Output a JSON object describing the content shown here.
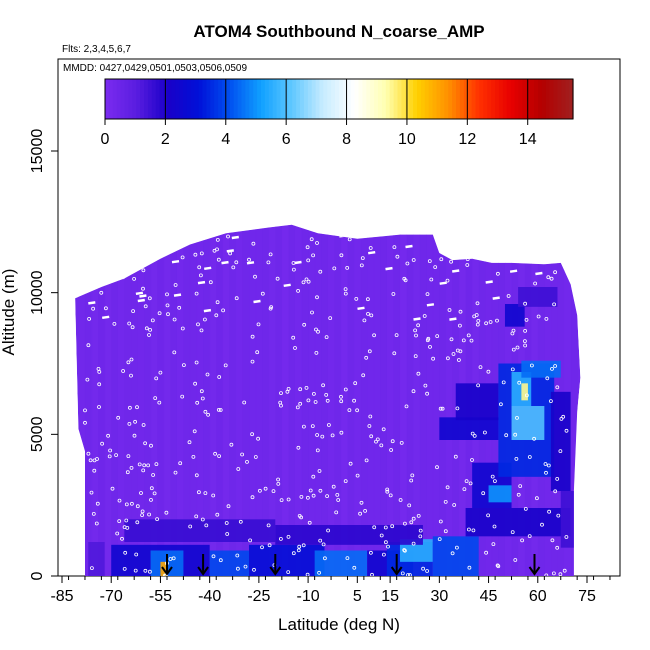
{
  "chart_data": {
    "type": "heatmap",
    "title": "ATOM4 Southbound N_coarse_AMP",
    "flights_label": "Flts: 2,3,4,5,6,7",
    "dates_label": "MMDD: 0427,0429,0501,0503,0506,0509",
    "xlabel": "Latitude (deg N)",
    "ylabel": "Altitude (m)",
    "xlim": [
      -88,
      90
    ],
    "ylim": [
      0,
      18000
    ],
    "x_ticks": [
      -85,
      -70,
      -55,
      -40,
      -25,
      -10,
      5,
      15,
      30,
      45,
      60,
      75
    ],
    "x_tick_labels": [
      "-85",
      "-70",
      "-55",
      "-40",
      "-25",
      "-10",
      "5",
      "15",
      "30",
      "45",
      "60",
      "75"
    ],
    "y_ticks": [
      0,
      5000,
      10000,
      15000
    ],
    "y_tick_labels": [
      "0",
      "5000",
      "10000",
      "15000"
    ],
    "colorbar": {
      "min": 0,
      "max": 15.5,
      "ticks": [
        0,
        2,
        4,
        6,
        8,
        10,
        12,
        14
      ],
      "tick_labels": [
        "0",
        "2",
        "4",
        "6",
        "8",
        "10",
        "12",
        "14"
      ],
      "colors": [
        "#7b2cf0",
        "#5a1de0",
        "#1a00c8",
        "#0010d8",
        "#0050f0",
        "#10a0ff",
        "#60c8ff",
        "#c8ecff",
        "#ffffff",
        "#ffffb0",
        "#ffd000",
        "#ff9000",
        "#ff3000",
        "#e80000",
        "#b40000",
        "#a02020"
      ]
    },
    "background_value": 0.3,
    "domain_outline": [
      [
        -78,
        0
      ],
      [
        -78,
        4400
      ],
      [
        -80,
        5200
      ],
      [
        -81,
        9800
      ],
      [
        -73,
        10200
      ],
      [
        -66,
        10500
      ],
      [
        -55,
        11200
      ],
      [
        -46,
        11700
      ],
      [
        -35,
        12100
      ],
      [
        -22,
        12300
      ],
      [
        -15,
        12400
      ],
      [
        -7,
        12100
      ],
      [
        5,
        11900
      ],
      [
        18,
        12050
      ],
      [
        28,
        12050
      ],
      [
        30,
        11400
      ],
      [
        34,
        11150
      ],
      [
        40,
        11200
      ],
      [
        46,
        11050
      ],
      [
        52,
        11050
      ],
      [
        62,
        11000
      ],
      [
        67,
        11050
      ],
      [
        70,
        10300
      ],
      [
        72,
        9200
      ],
      [
        73,
        7000
      ],
      [
        72,
        5800
      ],
      [
        71,
        3000
      ],
      [
        71,
        0
      ]
    ],
    "hotspots": [
      {
        "x": [
          -77,
          -72
        ],
        "y": [
          0,
          1200
        ],
        "value": 1.2
      },
      {
        "x": [
          -70,
          -40
        ],
        "y": [
          0,
          1100
        ],
        "value": 2.5
      },
      {
        "x": [
          -58,
          -48
        ],
        "y": [
          0,
          900
        ],
        "value": 4.5
      },
      {
        "x": [
          -55,
          -53
        ],
        "y": [
          0,
          500
        ],
        "value": 11
      },
      {
        "x": [
          -40,
          -28
        ],
        "y": [
          0,
          900
        ],
        "value": 4
      },
      {
        "x": [
          -28,
          -5
        ],
        "y": [
          0,
          1100
        ],
        "value": 3
      },
      {
        "x": [
          -8,
          8
        ],
        "y": [
          0,
          900
        ],
        "value": 4.5
      },
      {
        "x": [
          8,
          22
        ],
        "y": [
          0,
          900
        ],
        "value": 2.5
      },
      {
        "x": [
          14,
          28
        ],
        "y": [
          0,
          1200
        ],
        "value": 3.5
      },
      {
        "x": [
          18,
          28
        ],
        "y": [
          500,
          1300
        ],
        "value": 5.5
      },
      {
        "x": [
          28,
          42
        ],
        "y": [
          0,
          1400
        ],
        "value": 4
      },
      {
        "x": [
          -66,
          -20
        ],
        "y": [
          1200,
          2000
        ],
        "value": 1.6
      },
      {
        "x": [
          -20,
          25
        ],
        "y": [
          1100,
          1800
        ],
        "value": 1.8
      },
      {
        "x": [
          38,
          70
        ],
        "y": [
          1400,
          2400
        ],
        "value": 2.2
      },
      {
        "x": [
          40,
          52
        ],
        "y": [
          2400,
          4000
        ],
        "value": 2.5
      },
      {
        "x": [
          45,
          52
        ],
        "y": [
          2600,
          3200
        ],
        "value": 5
      },
      {
        "x": [
          30,
          48
        ],
        "y": [
          4800,
          5600
        ],
        "value": 2.5
      },
      {
        "x": [
          35,
          48
        ],
        "y": [
          5500,
          6800
        ],
        "value": 2.2
      },
      {
        "x": [
          48,
          65
        ],
        "y": [
          3500,
          7500
        ],
        "value": 3.5
      },
      {
        "x": [
          52,
          62
        ],
        "y": [
          4800,
          6000
        ],
        "value": 6
      },
      {
        "x": [
          52,
          58
        ],
        "y": [
          6000,
          7200
        ],
        "value": 5.5
      },
      {
        "x": [
          55,
          57
        ],
        "y": [
          6200,
          6800
        ],
        "value": 9.5
      },
      {
        "x": [
          55,
          67
        ],
        "y": [
          7000,
          7600
        ],
        "value": 4.5
      },
      {
        "x": [
          50,
          56
        ],
        "y": [
          8800,
          9600
        ],
        "value": 2.5
      },
      {
        "x": [
          54,
          66
        ],
        "y": [
          9500,
          10200
        ],
        "value": 1.5
      },
      {
        "x": [
          64,
          70
        ],
        "y": [
          3000,
          6500
        ],
        "value": 2.2
      },
      {
        "x": [
          67,
          71
        ],
        "y": [
          1000,
          3000
        ],
        "value": 1.5
      }
    ],
    "sounding_arrows_lat": [
      -53,
      -42,
      -20,
      17,
      59
    ]
  }
}
